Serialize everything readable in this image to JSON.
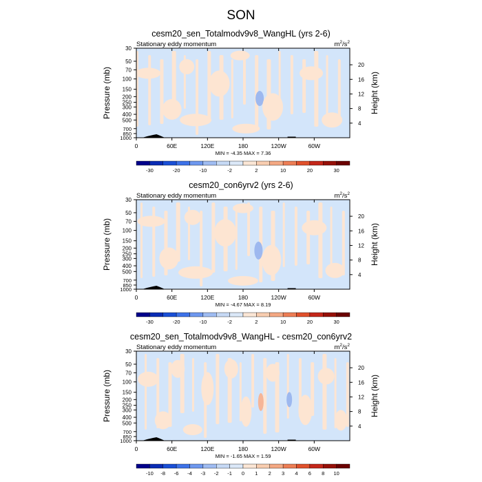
{
  "figure_title": "SON",
  "chart_data": [
    {
      "type": "heatmap",
      "title": "cesm20_sen_Totalmodv9v8_WangHL (yrs 2-6)",
      "subtitle_left": "Stationary eddy momentum",
      "units_base": "m",
      "units_sup1": "2",
      "units_mid": "/s",
      "units_sup2": "2",
      "ylabel": "Pressure (mb)",
      "ylabel_right": "Height (km)",
      "x_ticks": [
        "0",
        "60E",
        "120E",
        "180",
        "120W",
        "60W"
      ],
      "x_tick_lons": [
        0,
        60,
        120,
        180,
        240,
        300
      ],
      "xlim": [
        0,
        360
      ],
      "y_ticks": [
        "30",
        "50",
        "70",
        "100",
        "150",
        "200",
        "250",
        "300",
        "400",
        "500",
        "700",
        "850",
        "1000"
      ],
      "y_tick_values": [
        30,
        50,
        70,
        100,
        150,
        200,
        250,
        300,
        400,
        500,
        700,
        850,
        1000
      ],
      "ylim": [
        1000,
        30
      ],
      "height_ticks": [
        "4",
        "8",
        "12",
        "16",
        "20"
      ],
      "height_values": [
        4,
        8,
        12,
        16,
        20
      ],
      "minmax_label": "MIN = -4.35  MAX =  7.36",
      "colorbar_labels": [
        "-30",
        "-20",
        "-10",
        "-2",
        "2",
        "10",
        "20",
        "30"
      ],
      "colorbar_colors": [
        "#00008b",
        "#0a2cb4",
        "#1a4fd6",
        "#3d72e8",
        "#6e98ef",
        "#9fbcf2",
        "#c6d9f5",
        "#dbe8f8",
        "#fbe6d5",
        "#f8cdb0",
        "#f4a883",
        "#ed7e55",
        "#e0512c",
        "#c4271a",
        "#961008",
        "#6b0000"
      ],
      "features": [
        {
          "kind": "neg",
          "lon": 208,
          "p": 215,
          "w": 12,
          "h": 22
        },
        {
          "kind": "pos",
          "lon": 20,
          "p": 80,
          "w": 36,
          "h": 16
        },
        {
          "kind": "pos",
          "lon": 85,
          "p": 62,
          "w": 22,
          "h": 22
        },
        {
          "kind": "pos",
          "lon": 140,
          "p": 120,
          "w": 30,
          "h": 38
        },
        {
          "kind": "pos",
          "lon": 175,
          "p": 40,
          "w": 28,
          "h": 14
        },
        {
          "kind": "pos",
          "lon": 230,
          "p": 300,
          "w": 30,
          "h": 40
        },
        {
          "kind": "pos",
          "lon": 100,
          "p": 500,
          "w": 46,
          "h": 18
        },
        {
          "kind": "pos",
          "lon": 295,
          "p": 80,
          "w": 34,
          "h": 20
        },
        {
          "kind": "pos",
          "lon": 60,
          "p": 330,
          "w": 28,
          "h": 30
        },
        {
          "kind": "pos",
          "lon": 330,
          "p": 500,
          "w": 30,
          "h": 22
        },
        {
          "kind": "pos",
          "lon": 185,
          "p": 700,
          "w": 40,
          "h": 14
        }
      ]
    },
    {
      "type": "heatmap",
      "title": "cesm20_con6yrv2 (yrs 2-6)",
      "subtitle_left": "Stationary eddy momentum",
      "units_base": "m",
      "units_sup1": "2",
      "units_mid": "/s",
      "units_sup2": "2",
      "ylabel": "Pressure (mb)",
      "ylabel_right": "Height (km)",
      "x_ticks": [
        "0",
        "60E",
        "120E",
        "180",
        "120W",
        "60W"
      ],
      "x_tick_lons": [
        0,
        60,
        120,
        180,
        240,
        300
      ],
      "xlim": [
        0,
        360
      ],
      "y_ticks": [
        "30",
        "50",
        "70",
        "100",
        "150",
        "200",
        "250",
        "300",
        "400",
        "500",
        "700",
        "850",
        "1000"
      ],
      "y_tick_values": [
        30,
        50,
        70,
        100,
        150,
        200,
        250,
        300,
        400,
        500,
        700,
        850,
        1000
      ],
      "ylim": [
        1000,
        30
      ],
      "height_ticks": [
        "4",
        "8",
        "12",
        "16",
        "20"
      ],
      "height_values": [
        4,
        8,
        12,
        16,
        20
      ],
      "minmax_label": "MIN = -4.67  MAX =  8.19",
      "colorbar_labels": [
        "-30",
        "-20",
        "-10",
        "-2",
        "2",
        "10",
        "20",
        "30"
      ],
      "colorbar_colors": [
        "#00008b",
        "#0a2cb4",
        "#1a4fd6",
        "#3d72e8",
        "#6e98ef",
        "#9fbcf2",
        "#c6d9f5",
        "#dbe8f8",
        "#fbe6d5",
        "#f8cdb0",
        "#f4a883",
        "#ed7e55",
        "#e0512c",
        "#c4271a",
        "#961008",
        "#6b0000"
      ],
      "features": [
        {
          "kind": "neg",
          "lon": 206,
          "p": 220,
          "w": 12,
          "h": 26
        },
        {
          "kind": "pos",
          "lon": 25,
          "p": 70,
          "w": 40,
          "h": 16
        },
        {
          "kind": "pos",
          "lon": 95,
          "p": 60,
          "w": 24,
          "h": 22
        },
        {
          "kind": "pos",
          "lon": 150,
          "p": 110,
          "w": 32,
          "h": 40
        },
        {
          "kind": "pos",
          "lon": 180,
          "p": 42,
          "w": 30,
          "h": 14
        },
        {
          "kind": "pos",
          "lon": 228,
          "p": 320,
          "w": 28,
          "h": 44
        },
        {
          "kind": "pos",
          "lon": 100,
          "p": 520,
          "w": 50,
          "h": 18
        },
        {
          "kind": "pos",
          "lon": 300,
          "p": 90,
          "w": 36,
          "h": 22
        },
        {
          "kind": "pos",
          "lon": 55,
          "p": 300,
          "w": 28,
          "h": 32
        },
        {
          "kind": "pos",
          "lon": 335,
          "p": 480,
          "w": 28,
          "h": 22
        },
        {
          "kind": "pos",
          "lon": 180,
          "p": 720,
          "w": 44,
          "h": 14
        }
      ]
    },
    {
      "type": "heatmap",
      "title": "cesm20_sen_Totalmodv9v8_WangHL - cesm20_con6yrv2",
      "subtitle_left": "Stationary eddy momentum",
      "units_base": "m",
      "units_sup1": "2",
      "units_mid": "/s",
      "units_sup2": "2",
      "ylabel": "Pressure (mb)",
      "ylabel_right": "Height (km)",
      "x_ticks": [
        "0",
        "60E",
        "120E",
        "180",
        "120W",
        "60W"
      ],
      "x_tick_lons": [
        0,
        60,
        120,
        180,
        240,
        300
      ],
      "xlim": [
        0,
        360
      ],
      "y_ticks": [
        "30",
        "50",
        "70",
        "100",
        "150",
        "200",
        "250",
        "300",
        "400",
        "500",
        "700",
        "850",
        "1000"
      ],
      "y_tick_values": [
        30,
        50,
        70,
        100,
        150,
        200,
        250,
        300,
        400,
        500,
        700,
        850,
        1000
      ],
      "ylim": [
        1000,
        30
      ],
      "height_ticks": [
        "4",
        "8",
        "12",
        "16",
        "20"
      ],
      "height_values": [
        4,
        8,
        12,
        16,
        20
      ],
      "minmax_label": "MIN = -1.65  MAX =  1.59",
      "colorbar_labels": [
        "-10",
        "-8",
        "-6",
        "-4",
        "-3",
        "-2",
        "-1",
        "0",
        "1",
        "2",
        "3",
        "4",
        "6",
        "8",
        "10"
      ],
      "colorbar_colors": [
        "#00008b",
        "#0a2cb4",
        "#1a4fd6",
        "#3d72e8",
        "#6e98ef",
        "#9fbcf2",
        "#c6d9f5",
        "#dbe8f8",
        "#fbe6d5",
        "#f8cdb0",
        "#f4a883",
        "#ed7e55",
        "#e0512c",
        "#c4271a",
        "#961008",
        "#6b0000"
      ],
      "features": [
        {
          "kind": "neg",
          "lon": 258,
          "p": 200,
          "w": 8,
          "h": 22
        },
        {
          "kind": "strongpos",
          "lon": 210,
          "p": 220,
          "w": 8,
          "h": 26
        },
        {
          "kind": "pos",
          "lon": 20,
          "p": 90,
          "w": 30,
          "h": 22
        },
        {
          "kind": "pos",
          "lon": 70,
          "p": 60,
          "w": 20,
          "h": 26
        },
        {
          "kind": "pos",
          "lon": 120,
          "p": 130,
          "w": 18,
          "h": 48
        },
        {
          "kind": "pos",
          "lon": 160,
          "p": 60,
          "w": 20,
          "h": 28
        },
        {
          "kind": "pos",
          "lon": 185,
          "p": 320,
          "w": 16,
          "h": 44
        },
        {
          "kind": "pos",
          "lon": 230,
          "p": 70,
          "w": 20,
          "h": 26
        },
        {
          "kind": "pos",
          "lon": 285,
          "p": 300,
          "w": 20,
          "h": 44
        },
        {
          "kind": "pos",
          "lon": 320,
          "p": 80,
          "w": 24,
          "h": 24
        },
        {
          "kind": "pos",
          "lon": 45,
          "p": 450,
          "w": 24,
          "h": 26
        },
        {
          "kind": "pos",
          "lon": 345,
          "p": 450,
          "w": 18,
          "h": 30
        },
        {
          "kind": "pos",
          "lon": 95,
          "p": 650,
          "w": 28,
          "h": 16
        }
      ]
    }
  ]
}
